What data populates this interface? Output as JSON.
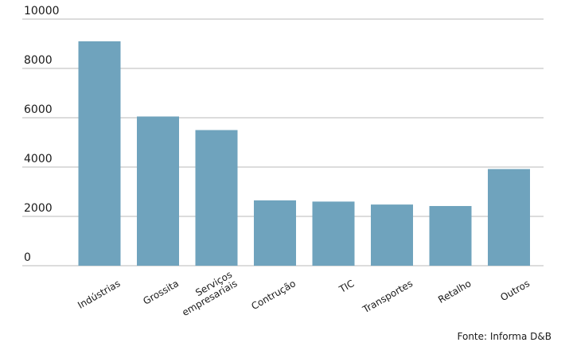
{
  "chart_data": {
    "type": "bar",
    "categories": [
      "Indústrias",
      "Grossita",
      "Serviços empresariais",
      "Contrução",
      "TIC",
      "Transportes",
      "Retalho",
      "Outros"
    ],
    "category_lines": [
      [
        "Indústrias"
      ],
      [
        "Grossita"
      ],
      [
        "Serviços",
        "empresariais"
      ],
      [
        "Contrução"
      ],
      [
        "TIC"
      ],
      [
        "Transportes"
      ],
      [
        "Retalho"
      ],
      [
        "Outros"
      ]
    ],
    "values": [
      9100,
      6050,
      5500,
      2650,
      2600,
      2480,
      2420,
      3920
    ],
    "yticks": [
      "0",
      "2000",
      "4000",
      "6000",
      "8000",
      "10000"
    ],
    "ylim": [
      0,
      10000
    ],
    "bar_color": "#6fa3bd",
    "grid": true,
    "legend": "none"
  },
  "source": "Fonte: Informa D&B"
}
